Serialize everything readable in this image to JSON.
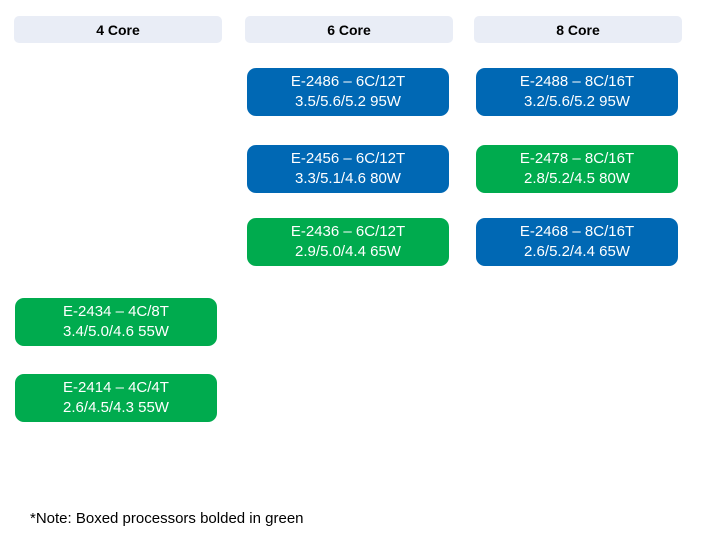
{
  "colors": {
    "blue": "#0068B4",
    "green": "#00AB4E",
    "header_bg": "#E9EDF6"
  },
  "columns": [
    {
      "header": "4 Core",
      "items": [
        {
          "name": "E-2434 – 4C/8T",
          "specs": "3.4/5.0/4.6 55W",
          "variant": "green"
        },
        {
          "name": "E-2414 – 4C/4T",
          "specs": "2.6/4.5/4.3 55W",
          "variant": "green"
        }
      ]
    },
    {
      "header": "6 Core",
      "items": [
        {
          "name": "E-2486 – 6C/12T",
          "specs": "3.5/5.6/5.2 95W",
          "variant": "blue"
        },
        {
          "name": "E-2456 – 6C/12T",
          "specs": "3.3/5.1/4.6 80W",
          "variant": "blue"
        },
        {
          "name": "E-2436 – 6C/12T",
          "specs": "2.9/5.0/4.4 65W",
          "variant": "green"
        }
      ]
    },
    {
      "header": "8 Core",
      "items": [
        {
          "name": "E-2488 – 8C/16T",
          "specs": "3.2/5.6/5.2 95W",
          "variant": "blue"
        },
        {
          "name": "E-2478 – 8C/16T",
          "specs": "2.8/5.2/4.5 80W",
          "variant": "green"
        },
        {
          "name": "E-2468 – 8C/16T",
          "specs": "2.6/5.2/4.4 65W",
          "variant": "blue"
        }
      ]
    }
  ],
  "note": "*Note: Boxed processors bolded in green"
}
